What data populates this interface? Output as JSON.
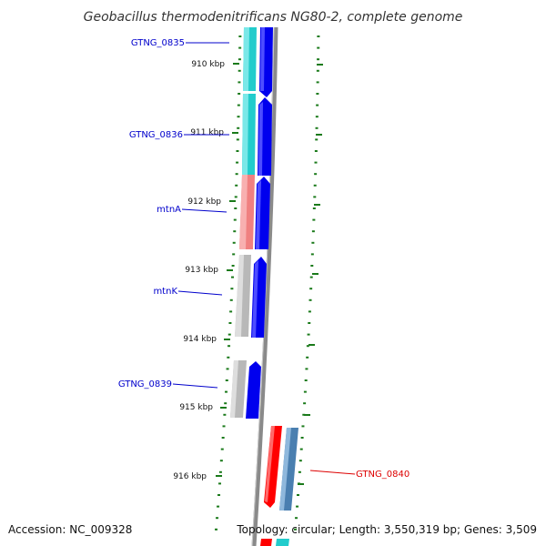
{
  "title": "Geobacillus thermodenitrificans NG80-2, complete genome",
  "accession": "Accession: NC_009328",
  "summary": "Topology: circular; Length: 3,550,319 bp; Genes: 3,509",
  "colors": {
    "backbone": "#808080",
    "tick": "#1a7a1a",
    "label_blue": "#0000cc",
    "label_red": "#dd0000",
    "forward_cds": "#0000ee",
    "reverse_cds": "#ff0000",
    "gene_cyan": "#22cccc",
    "gene_salmon": "#f08080",
    "gene_gray": "#b8b8b8",
    "gene_steel": "#4a7fb0"
  },
  "ticks": [
    {
      "label": "910 kbp"
    },
    {
      "label": "911 kbp"
    },
    {
      "label": "912 kbp"
    },
    {
      "label": "913 kbp"
    },
    {
      "label": "914 kbp"
    },
    {
      "label": "915 kbp"
    },
    {
      "label": "916 kbp"
    }
  ],
  "genes": [
    {
      "name": "GTNG_0835",
      "strand": "forward",
      "color": "cyan"
    },
    {
      "name": "GTNG_0836",
      "strand": "forward",
      "color": "cyan"
    },
    {
      "name": "mtnA",
      "strand": "forward",
      "color": "salmon"
    },
    {
      "name": "mtnK",
      "strand": "forward",
      "color": "gray"
    },
    {
      "name": "GTNG_0839",
      "strand": "forward",
      "color": "gray"
    },
    {
      "name": "GTNG_0840",
      "strand": "reverse",
      "color": "steel"
    }
  ]
}
